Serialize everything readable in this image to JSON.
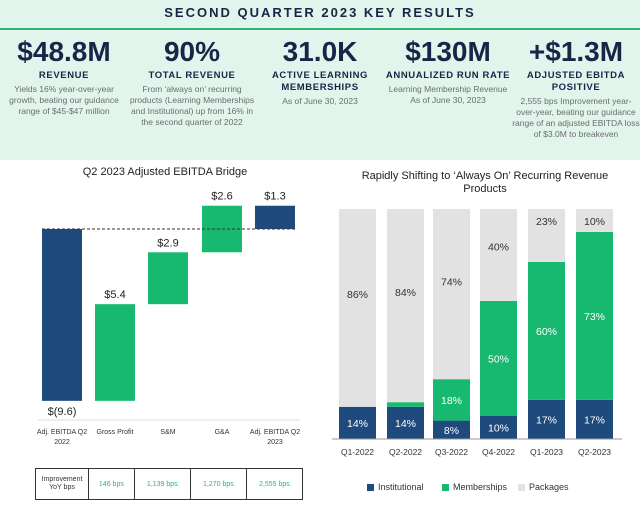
{
  "header": {
    "title": "SECOND QUARTER 2023 KEY RESULTS",
    "kpis": [
      {
        "value": "$48.8M",
        "label": "REVENUE",
        "desc": "Yields 16% year-over-year growth, beating our guidance range of $45-$47 million"
      },
      {
        "value": "90%",
        "label": "TOTAL REVENUE",
        "desc": "From ‘always on’ recurring products (Learning Memberships and Institutional) up from 16% in the second quarter of 2022"
      },
      {
        "value": "31.0K",
        "label": "ACTIVE LEARNING MEMBERSHIPS",
        "desc": "As of June 30, 2023"
      },
      {
        "value": "$130M",
        "label": "ANNUALIZED RUN RATE",
        "desc": "Learning Membership Revenue As of June 30, 2023"
      },
      {
        "value": "+$1.3M",
        "label": "ADJUSTED EBITDA POSITIVE",
        "desc": "2,555 bps Improvement year-over-year, beating our guidance range of an adjusted EBITDA loss of $3.0M to breakeven"
      }
    ]
  },
  "colors": {
    "navy": "#1f4a7d",
    "green": "#17b86f",
    "gray": "#e2e2e2",
    "header_bg": "#e2f5ec"
  },
  "chart_data": [
    {
      "type": "waterfall",
      "title": "Q2 2023 Adjusted EBITDA Bridge",
      "categories": [
        "Adj. EBITDA Q2 2022",
        "Gross Profit",
        "S&M",
        "G&A",
        "Adj. EBITDA Q2 2023"
      ],
      "values": [
        -9.6,
        5.4,
        2.9,
        2.6,
        1.3
      ],
      "labels": [
        "$(9.6)",
        "$5.4",
        "$2.9",
        "$2.6",
        "$1.3"
      ],
      "kinds": [
        "total",
        "delta",
        "delta",
        "delta",
        "total"
      ],
      "table": {
        "row_header": "Improvement YoY bps",
        "values": [
          "146 bps",
          "1,139 bps",
          "1,270 bps",
          "2,555 bps"
        ]
      }
    },
    {
      "type": "stacked-bar",
      "title": "Rapidly Shifting to ‘Always On’ Recurring Revenue Products",
      "categories": [
        "Q1-2022",
        "Q2-2022",
        "Q3-2022",
        "Q4-2022",
        "Q1-2023",
        "Q2-2023"
      ],
      "series": [
        {
          "name": "Institutional",
          "values": [
            14,
            14,
            8,
            10,
            17,
            17
          ]
        },
        {
          "name": "Memberships",
          "values": [
            0,
            2,
            18,
            50,
            60,
            73
          ]
        },
        {
          "name": "Packages",
          "values": [
            86,
            84,
            74,
            40,
            23,
            10
          ]
        }
      ],
      "ylim": [
        0,
        100
      ],
      "legend": "bottom"
    }
  ]
}
